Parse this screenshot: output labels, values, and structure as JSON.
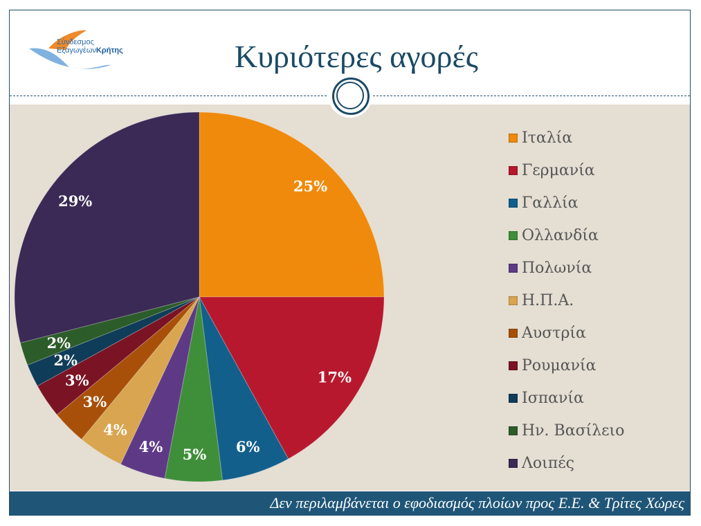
{
  "header": {
    "title": "Κυριότερες αγορές",
    "logo_line1": "Σύνδεσμος",
    "logo_line2a": "Εξαγωγέων",
    "logo_line2b": "Κρήτης"
  },
  "footer": {
    "note": "Δεν περιλαμβάνεται ο εφοδιασμός πλοίων προς Ε.Ε. & Τρίτες Χώρες"
  },
  "chart_data": {
    "type": "pie",
    "start": "top, clockwise",
    "legend_position": "right",
    "categories": [
      "Ιταλία",
      "Γερμανία",
      "Γαλλία",
      "Ολλανδία",
      "Πολωνία",
      "Η.Π.Α.",
      "Αυστρία",
      "Ρουμανία",
      "Ισπανία",
      "Ην. Βασίλειο",
      "Λοιπές"
    ],
    "values": [
      25,
      17,
      6,
      5,
      4,
      4,
      3,
      3,
      2,
      2,
      29
    ],
    "labels": [
      "25%",
      "17%",
      "6%",
      "5%",
      "4%",
      "4%",
      "3%",
      "3%",
      "2%",
      "2%",
      "29%"
    ],
    "colors": [
      "#f08a0c",
      "#b8182e",
      "#135f8c",
      "#3f8f3a",
      "#5e3a86",
      "#d9a550",
      "#a8500a",
      "#7a1424",
      "#0f3c58",
      "#2c5c2a",
      "#3a2a55"
    ]
  }
}
